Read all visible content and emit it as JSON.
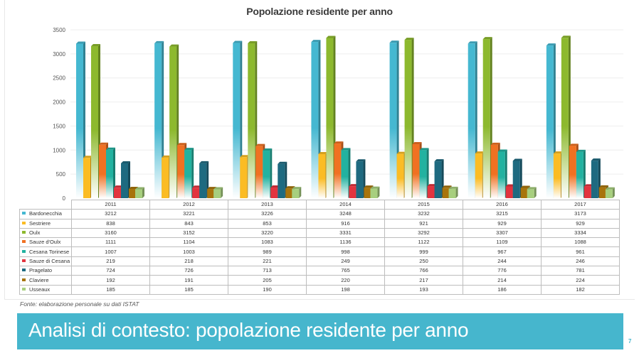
{
  "slide": {
    "source_note": "Fonte: elaborazione personale su dati ISTAT",
    "banner_title": "Analisi di contesto: popolazione residente per anno",
    "page_number": "7",
    "banner_color": "#46b6cd"
  },
  "chart_data": {
    "type": "bar",
    "title": "Popolazione residente per anno",
    "xlabel": "",
    "ylabel": "",
    "ylim": [
      0,
      3500
    ],
    "yticks": [
      "0",
      "500",
      "1000",
      "1500",
      "2000",
      "2500",
      "3000",
      "3500"
    ],
    "ytick_values": [
      0,
      500,
      1000,
      1500,
      2000,
      2500,
      3000,
      3500
    ],
    "grid": true,
    "legend": "data-table-below",
    "categories": [
      "2011",
      "2012",
      "2013",
      "2014",
      "2015",
      "2016",
      "2017"
    ],
    "series": [
      {
        "name": "Bardonecchia",
        "color": "#45b8d1",
        "values": [
          3212,
          3221,
          3226,
          3248,
          3232,
          3215,
          3173
        ],
        "display": [
          "3212",
          "3221",
          "3226",
          "3248",
          "3232",
          "3215",
          "3173"
        ]
      },
      {
        "name": "Sestriere",
        "color": "#fbbc24",
        "values": [
          838,
          843,
          853,
          916,
          921,
          929,
          929
        ],
        "display": [
          "838",
          "843",
          "853",
          "916",
          "921",
          "929",
          "929"
        ]
      },
      {
        "name": "Oulx",
        "color": "#8db92e",
        "values": [
          3160,
          3152,
          3220,
          3331,
          3292,
          3307,
          3334
        ],
        "display": [
          "3160",
          "3152",
          "3220",
          "3331",
          "3292",
          "3307",
          "3334"
        ]
      },
      {
        "name": "Sauze d'Oulx",
        "color": "#f07122",
        "values": [
          1111,
          1104,
          1083,
          1136,
          1122,
          1109,
          1088
        ],
        "display": [
          "1111",
          "1104",
          "1083",
          "1136",
          "1122",
          "1109",
          "1088"
        ]
      },
      {
        "name": "Cesana Torinese",
        "color": "#22b2a0",
        "values": [
          1007,
          1003,
          989,
          998,
          999,
          967,
          961
        ],
        "display": [
          "1007",
          "1003",
          "989",
          "998",
          "999",
          "967",
          "961"
        ]
      },
      {
        "name": "Sauze di Cesana",
        "color": "#e2343f",
        "values": [
          219,
          218,
          221,
          249,
          250,
          244,
          246
        ],
        "display": [
          "219",
          "218",
          "221",
          "249",
          "250",
          "244",
          "246"
        ]
      },
      {
        "name": "Pragelato",
        "color": "#1e6a80",
        "values": [
          724,
          726,
          713,
          765,
          766,
          776,
          781
        ],
        "display": [
          "724",
          "726",
          "713",
          "765",
          "766",
          "776",
          "781"
        ]
      },
      {
        "name": "Claviere",
        "color": "#a8740c",
        "values": [
          192,
          191,
          205,
          220,
          217,
          214,
          224
        ],
        "display": [
          "192",
          "191",
          "205",
          "220",
          "217",
          "214",
          "224"
        ]
      },
      {
        "name": "Usseaux",
        "color": "#a7cf7e",
        "values": [
          185,
          185,
          190,
          198,
          193,
          186,
          182
        ],
        "display": [
          "185",
          "185",
          "190",
          "198",
          "193",
          "186",
          "182"
        ]
      }
    ]
  }
}
